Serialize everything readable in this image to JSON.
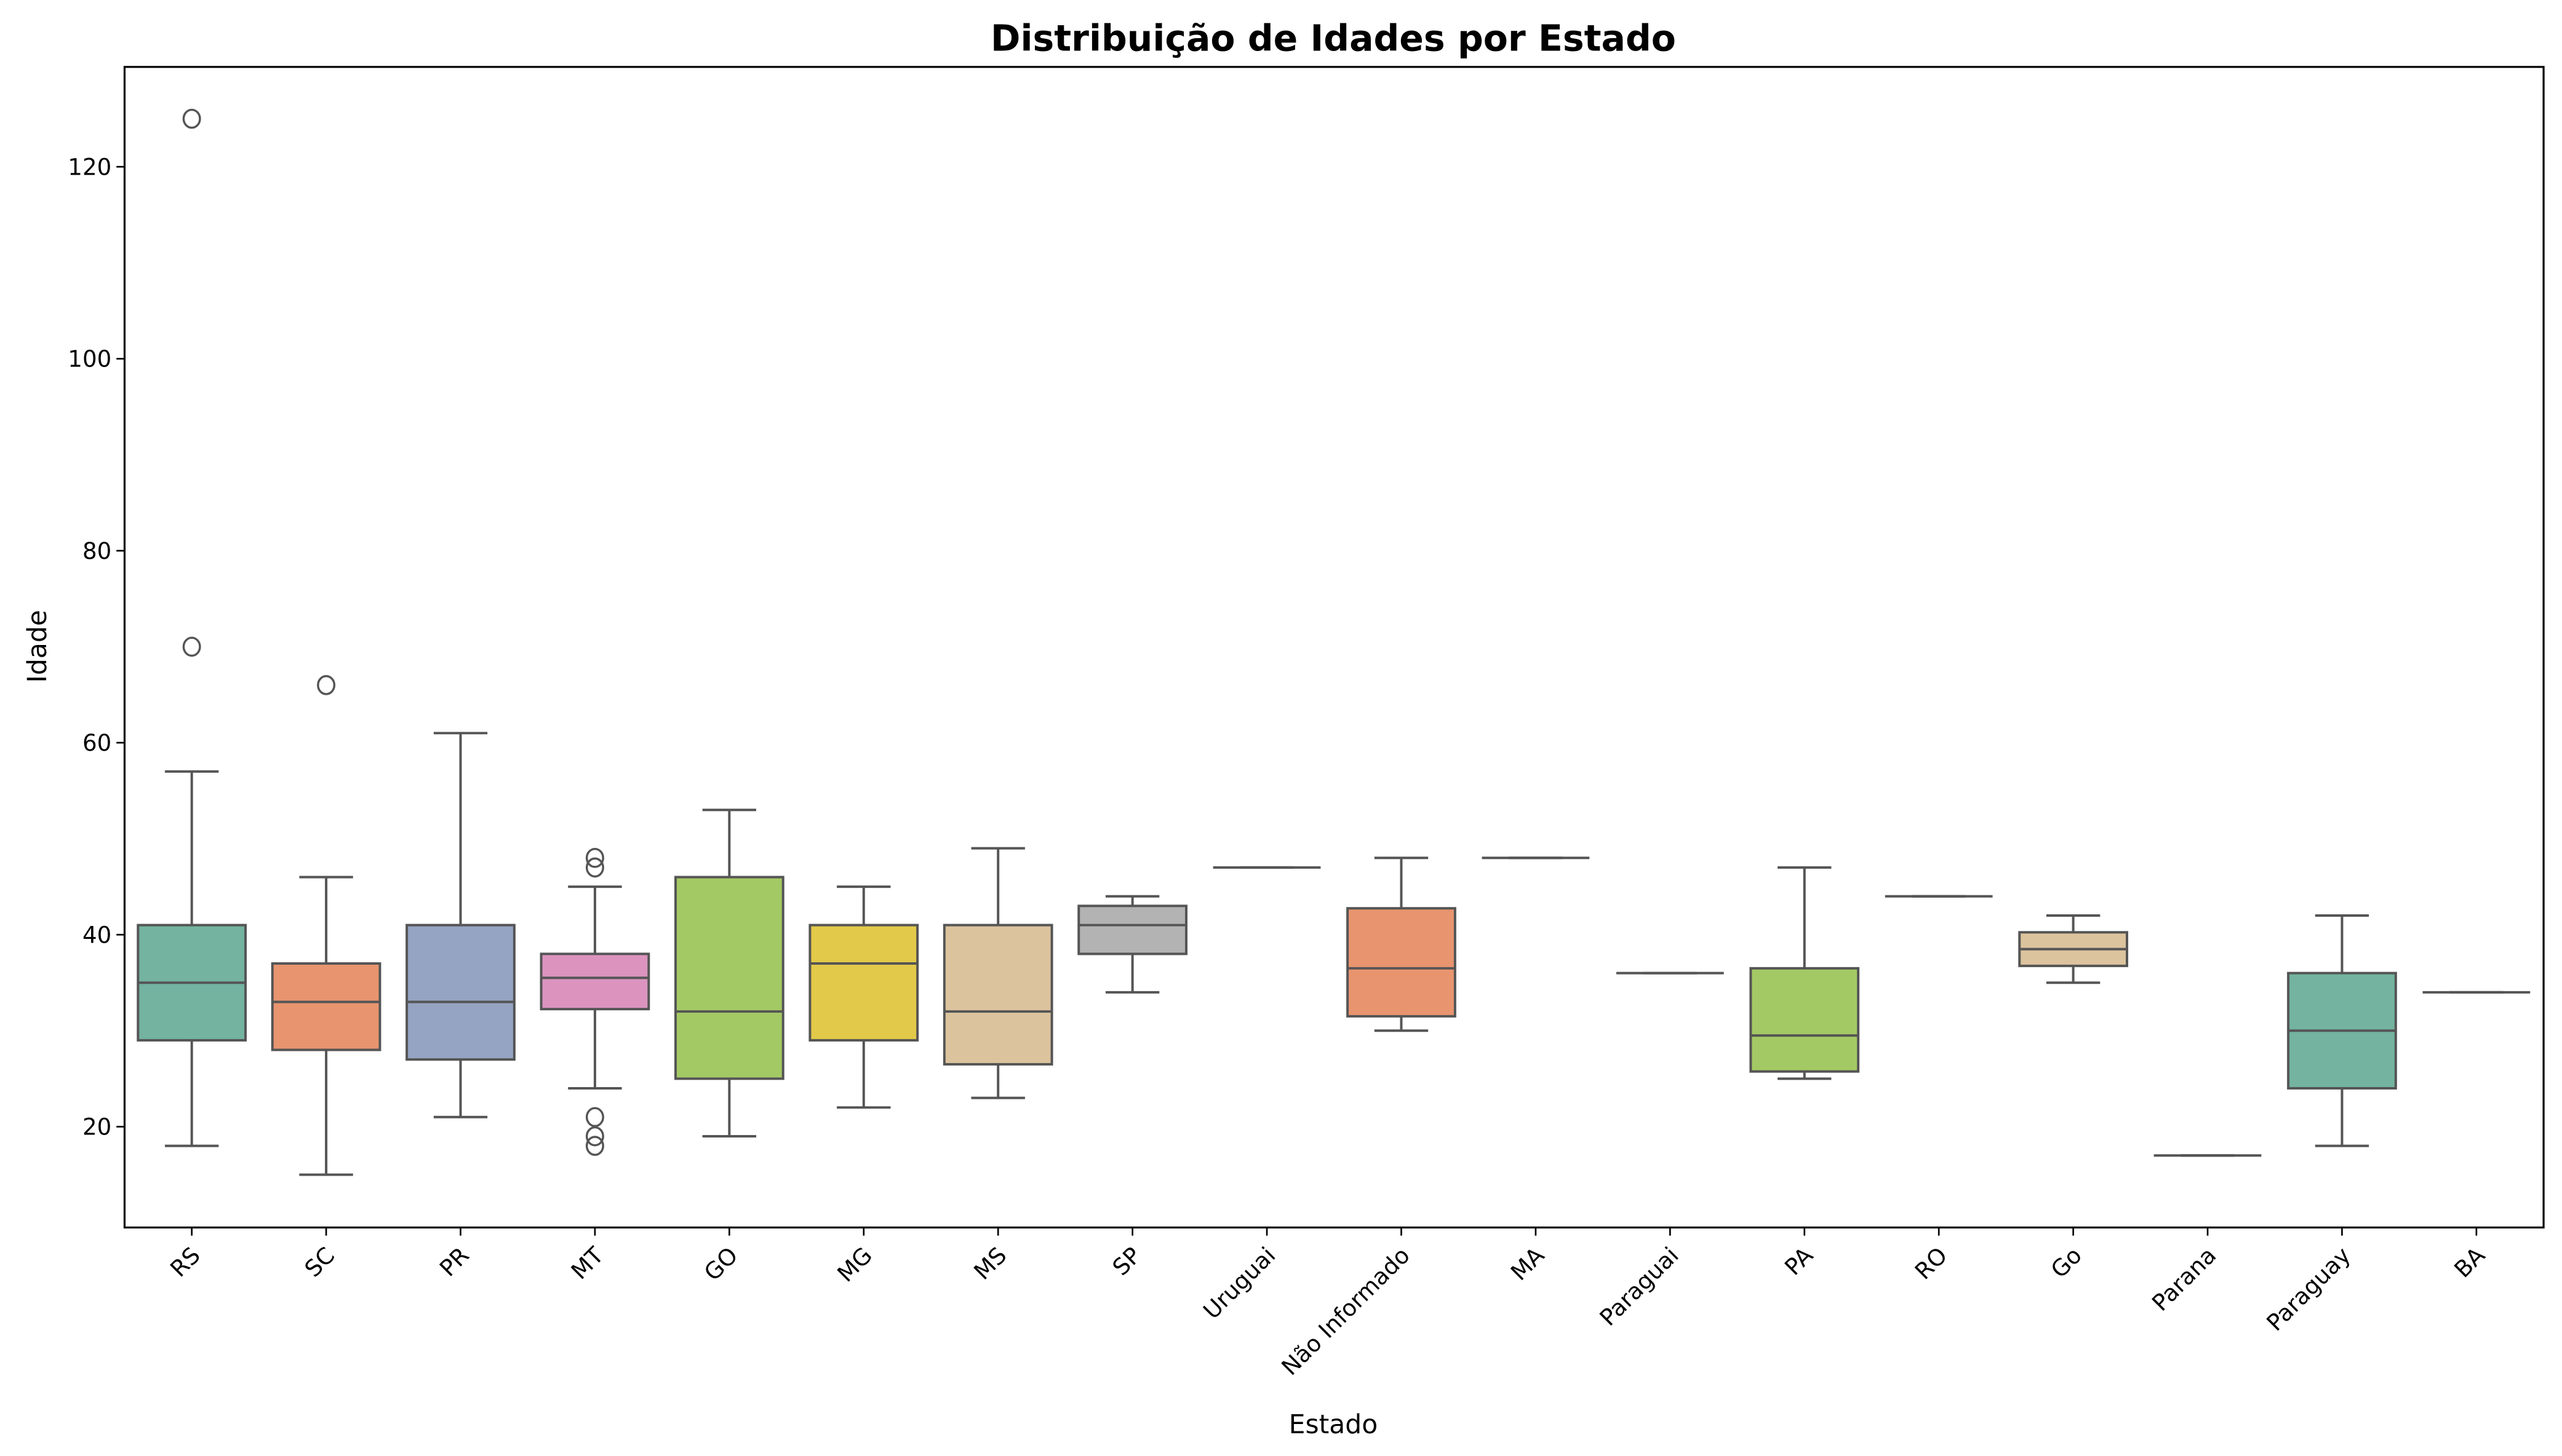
{
  "chart_data": {
    "type": "box",
    "title": "Distribuição de Idades por Estado",
    "xlabel": "Estado",
    "ylabel": "Idade",
    "ylim": [
      9.5,
      130.4
    ],
    "yticks": [
      20,
      40,
      60,
      80,
      100,
      120
    ],
    "grid": false,
    "colors": [
      "#73b3a0",
      "#e8956f",
      "#95a4c2",
      "#dc94bf",
      "#a3c964",
      "#e3c949",
      "#dbc39d",
      "#b3b3b3"
    ],
    "line_color": "#555555",
    "categories": [
      "RS",
      "SC",
      "PR",
      "MT",
      "GO",
      "MG",
      "MS",
      "SP",
      "Uruguai",
      "Não Informado",
      "MA",
      "Paraguai",
      "PA",
      "RO",
      "Go",
      "Parana",
      "Paraguay",
      "BA"
    ],
    "boxes": [
      {
        "whisker_low": 18,
        "q1": 29,
        "median": 35,
        "q3": 41,
        "whisker_high": 57,
        "outliers": [
          70,
          125
        ]
      },
      {
        "whisker_low": 15,
        "q1": 28,
        "median": 33,
        "q3": 37,
        "whisker_high": 46,
        "outliers": [
          66
        ]
      },
      {
        "whisker_low": 21,
        "q1": 27,
        "median": 33,
        "q3": 41,
        "whisker_high": 61,
        "outliers": []
      },
      {
        "whisker_low": 24,
        "q1": 32.25,
        "median": 35.5,
        "q3": 38,
        "whisker_high": 45,
        "outliers": [
          47,
          48,
          21,
          19,
          18
        ]
      },
      {
        "whisker_low": 19,
        "q1": 25,
        "median": 32,
        "q3": 46,
        "whisker_high": 53,
        "outliers": []
      },
      {
        "whisker_low": 22,
        "q1": 29,
        "median": 37,
        "q3": 41,
        "whisker_high": 45,
        "outliers": []
      },
      {
        "whisker_low": 23,
        "q1": 26.5,
        "median": 32,
        "q3": 41,
        "whisker_high": 49,
        "outliers": []
      },
      {
        "whisker_low": 34,
        "q1": 38,
        "median": 41,
        "q3": 43,
        "whisker_high": 44,
        "outliers": []
      },
      {
        "whisker_low": 47,
        "q1": 47,
        "median": 47,
        "q3": 47,
        "whisker_high": 47,
        "outliers": []
      },
      {
        "whisker_low": 30,
        "q1": 31.5,
        "median": 36.5,
        "q3": 42.75,
        "whisker_high": 48,
        "outliers": []
      },
      {
        "whisker_low": 48,
        "q1": 48,
        "median": 48,
        "q3": 48,
        "whisker_high": 48,
        "outliers": []
      },
      {
        "whisker_low": 36,
        "q1": 36,
        "median": 36,
        "q3": 36,
        "whisker_high": 36,
        "outliers": []
      },
      {
        "whisker_low": 25,
        "q1": 25.75,
        "median": 29.5,
        "q3": 36.5,
        "whisker_high": 47,
        "outliers": []
      },
      {
        "whisker_low": 44,
        "q1": 44,
        "median": 44,
        "q3": 44,
        "whisker_high": 44,
        "outliers": []
      },
      {
        "whisker_low": 35,
        "q1": 36.75,
        "median": 38.5,
        "q3": 40.25,
        "whisker_high": 42,
        "outliers": []
      },
      {
        "whisker_low": 17,
        "q1": 17,
        "median": 17,
        "q3": 17,
        "whisker_high": 17,
        "outliers": []
      },
      {
        "whisker_low": 18,
        "q1": 24,
        "median": 30,
        "q3": 36,
        "whisker_high": 42,
        "outliers": []
      },
      {
        "whisker_low": 34,
        "q1": 34,
        "median": 34,
        "q3": 34,
        "whisker_high": 34,
        "outliers": []
      }
    ]
  }
}
